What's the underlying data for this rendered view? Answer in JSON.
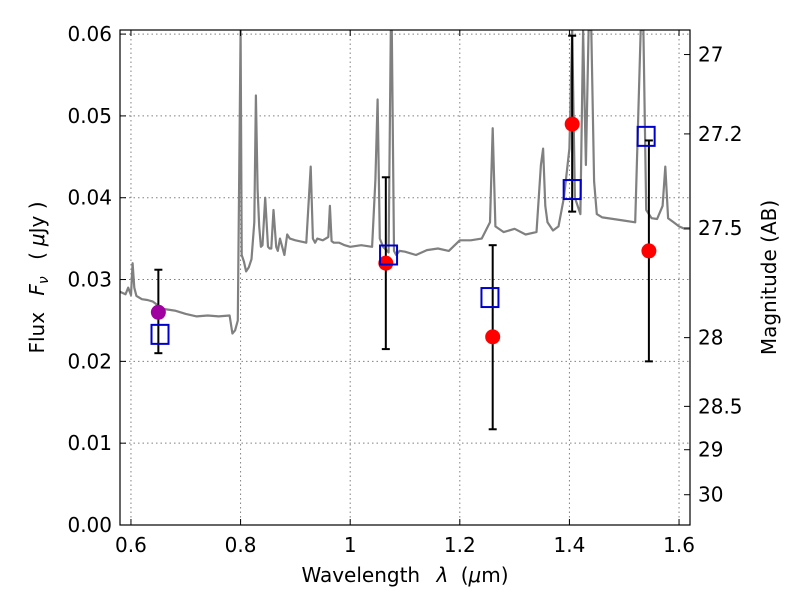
{
  "chart_data": {
    "type": "scatter",
    "xlabel_text": "Wavelength",
    "xlabel_symbol": "λ",
    "xlabel_unit_open": "(",
    "xlabel_unit_mu": "μ",
    "xlabel_unit_rest": "m)",
    "ylabel_text": "Flux",
    "ylabel_symbol": "F",
    "ylabel_symbol_sub": "ν",
    "ylabel_unit_open": "(",
    "ylabel_unit_mu": "μ",
    "ylabel_unit_rest": "Jy )",
    "ylabel_right": "Magnitude (AB)",
    "xlim": [
      0.58,
      1.62
    ],
    "ylim": [
      0.0,
      0.0605
    ],
    "grid": true,
    "x_ticks": [
      0.6,
      0.8,
      1.0,
      1.2,
      1.4,
      1.6
    ],
    "x_tick_labels": [
      "0.6",
      "0.8",
      "1",
      "1.2",
      "1.4",
      "1.6"
    ],
    "y_ticks": [
      0.0,
      0.01,
      0.02,
      0.03,
      0.04,
      0.05,
      0.06
    ],
    "y_tick_labels": [
      "0.00",
      "0.01",
      "0.02",
      "0.03",
      "0.04",
      "0.05",
      "0.06"
    ],
    "right_ticks": [
      {
        "label": "27",
        "flux": 0.0575
      },
      {
        "label": "27.2",
        "flux": 0.0478
      },
      {
        "label": "27.5",
        "flux": 0.0363
      },
      {
        "label": "28",
        "flux": 0.0229
      },
      {
        "label": "28.5",
        "flux": 0.0145
      },
      {
        "label": "29",
        "flux": 0.0092
      },
      {
        "label": "30",
        "flux": 0.0037
      }
    ],
    "spectrum": {
      "color": "#808080",
      "x": [
        0.58,
        0.59,
        0.595,
        0.6,
        0.603,
        0.606,
        0.61,
        0.62,
        0.63,
        0.64,
        0.65,
        0.66,
        0.68,
        0.7,
        0.72,
        0.74,
        0.76,
        0.78,
        0.785,
        0.79,
        0.795,
        0.8,
        0.802,
        0.806,
        0.81,
        0.815,
        0.82,
        0.825,
        0.828,
        0.831,
        0.834,
        0.837,
        0.84,
        0.845,
        0.85,
        0.853,
        0.856,
        0.86,
        0.865,
        0.868,
        0.872,
        0.876,
        0.88,
        0.885,
        0.89,
        0.9,
        0.92,
        0.928,
        0.932,
        0.936,
        0.94,
        0.95,
        0.96,
        0.963,
        0.966,
        0.97,
        0.98,
        0.99,
        1.0,
        1.02,
        1.04,
        1.046,
        1.05,
        1.054,
        1.06,
        1.07,
        1.074,
        1.076,
        1.08,
        1.084,
        1.09,
        1.1,
        1.12,
        1.14,
        1.16,
        1.18,
        1.2,
        1.22,
        1.24,
        1.255,
        1.26,
        1.265,
        1.28,
        1.3,
        1.32,
        1.34,
        1.348,
        1.352,
        1.356,
        1.36,
        1.37,
        1.38,
        1.39,
        1.4,
        1.405,
        1.41,
        1.42,
        1.425,
        1.43,
        1.435,
        1.44,
        1.445,
        1.45,
        1.46,
        1.48,
        1.5,
        1.52,
        1.53,
        1.535,
        1.54,
        1.55,
        1.56,
        1.57,
        1.575,
        1.58,
        1.59,
        1.6,
        1.61,
        1.62
      ],
      "y": [
        0.0285,
        0.0282,
        0.029,
        0.0281,
        0.032,
        0.029,
        0.028,
        0.0276,
        0.0275,
        0.0273,
        0.0268,
        0.0264,
        0.0262,
        0.0258,
        0.0255,
        0.0256,
        0.0255,
        0.0256,
        0.0234,
        0.0238,
        0.025,
        0.0605,
        0.033,
        0.0322,
        0.031,
        0.0315,
        0.0325,
        0.037,
        0.0525,
        0.041,
        0.0365,
        0.034,
        0.0342,
        0.04,
        0.034,
        0.0338,
        0.0338,
        0.0385,
        0.034,
        0.0335,
        0.035,
        0.034,
        0.033,
        0.0355,
        0.035,
        0.0348,
        0.0345,
        0.0438,
        0.035,
        0.0345,
        0.035,
        0.0348,
        0.0352,
        0.039,
        0.0347,
        0.0345,
        0.0345,
        0.0342,
        0.034,
        0.0342,
        0.034,
        0.0422,
        0.052,
        0.035,
        0.034,
        0.0333,
        0.0605,
        0.0605,
        0.0335,
        0.033,
        0.0335,
        0.0334,
        0.033,
        0.0336,
        0.0338,
        0.0335,
        0.0348,
        0.0348,
        0.035,
        0.037,
        0.0485,
        0.0365,
        0.0358,
        0.0362,
        0.0355,
        0.0358,
        0.044,
        0.046,
        0.039,
        0.037,
        0.036,
        0.0365,
        0.04,
        0.046,
        0.0605,
        0.04,
        0.038,
        0.0605,
        0.044,
        0.0605,
        0.0605,
        0.042,
        0.038,
        0.0376,
        0.0374,
        0.0372,
        0.037,
        0.0605,
        0.0605,
        0.0385,
        0.0375,
        0.0374,
        0.039,
        0.0438,
        0.0375,
        0.037,
        0.0365,
        0.0362,
        0.0362
      ]
    },
    "series": [
      {
        "marker": "filled-circle",
        "color": "#ff0000",
        "x": [
          1.065,
          1.26,
          1.405,
          1.545
        ],
        "y": [
          0.032,
          0.023,
          0.049,
          0.0335
        ]
      },
      {
        "marker": "filled-circle",
        "color": "#a000a0",
        "x": [
          0.65
        ],
        "y": [
          0.026
        ]
      },
      {
        "marker": "open-square",
        "color": "#0000cc",
        "x": [
          0.653,
          1.07,
          1.255,
          1.405,
          1.54
        ],
        "y": [
          0.0233,
          0.033,
          0.0278,
          0.041,
          0.0475
        ]
      }
    ],
    "error_bars": [
      {
        "x": 0.65,
        "low": 0.021,
        "high": 0.0312
      },
      {
        "x": 1.065,
        "low": 0.0215,
        "high": 0.0425
      },
      {
        "x": 1.26,
        "low": 0.0117,
        "high": 0.0342
      },
      {
        "x": 1.405,
        "low": 0.0383,
        "high": 0.0598
      },
      {
        "x": 1.545,
        "low": 0.02,
        "high": 0.047
      }
    ]
  }
}
